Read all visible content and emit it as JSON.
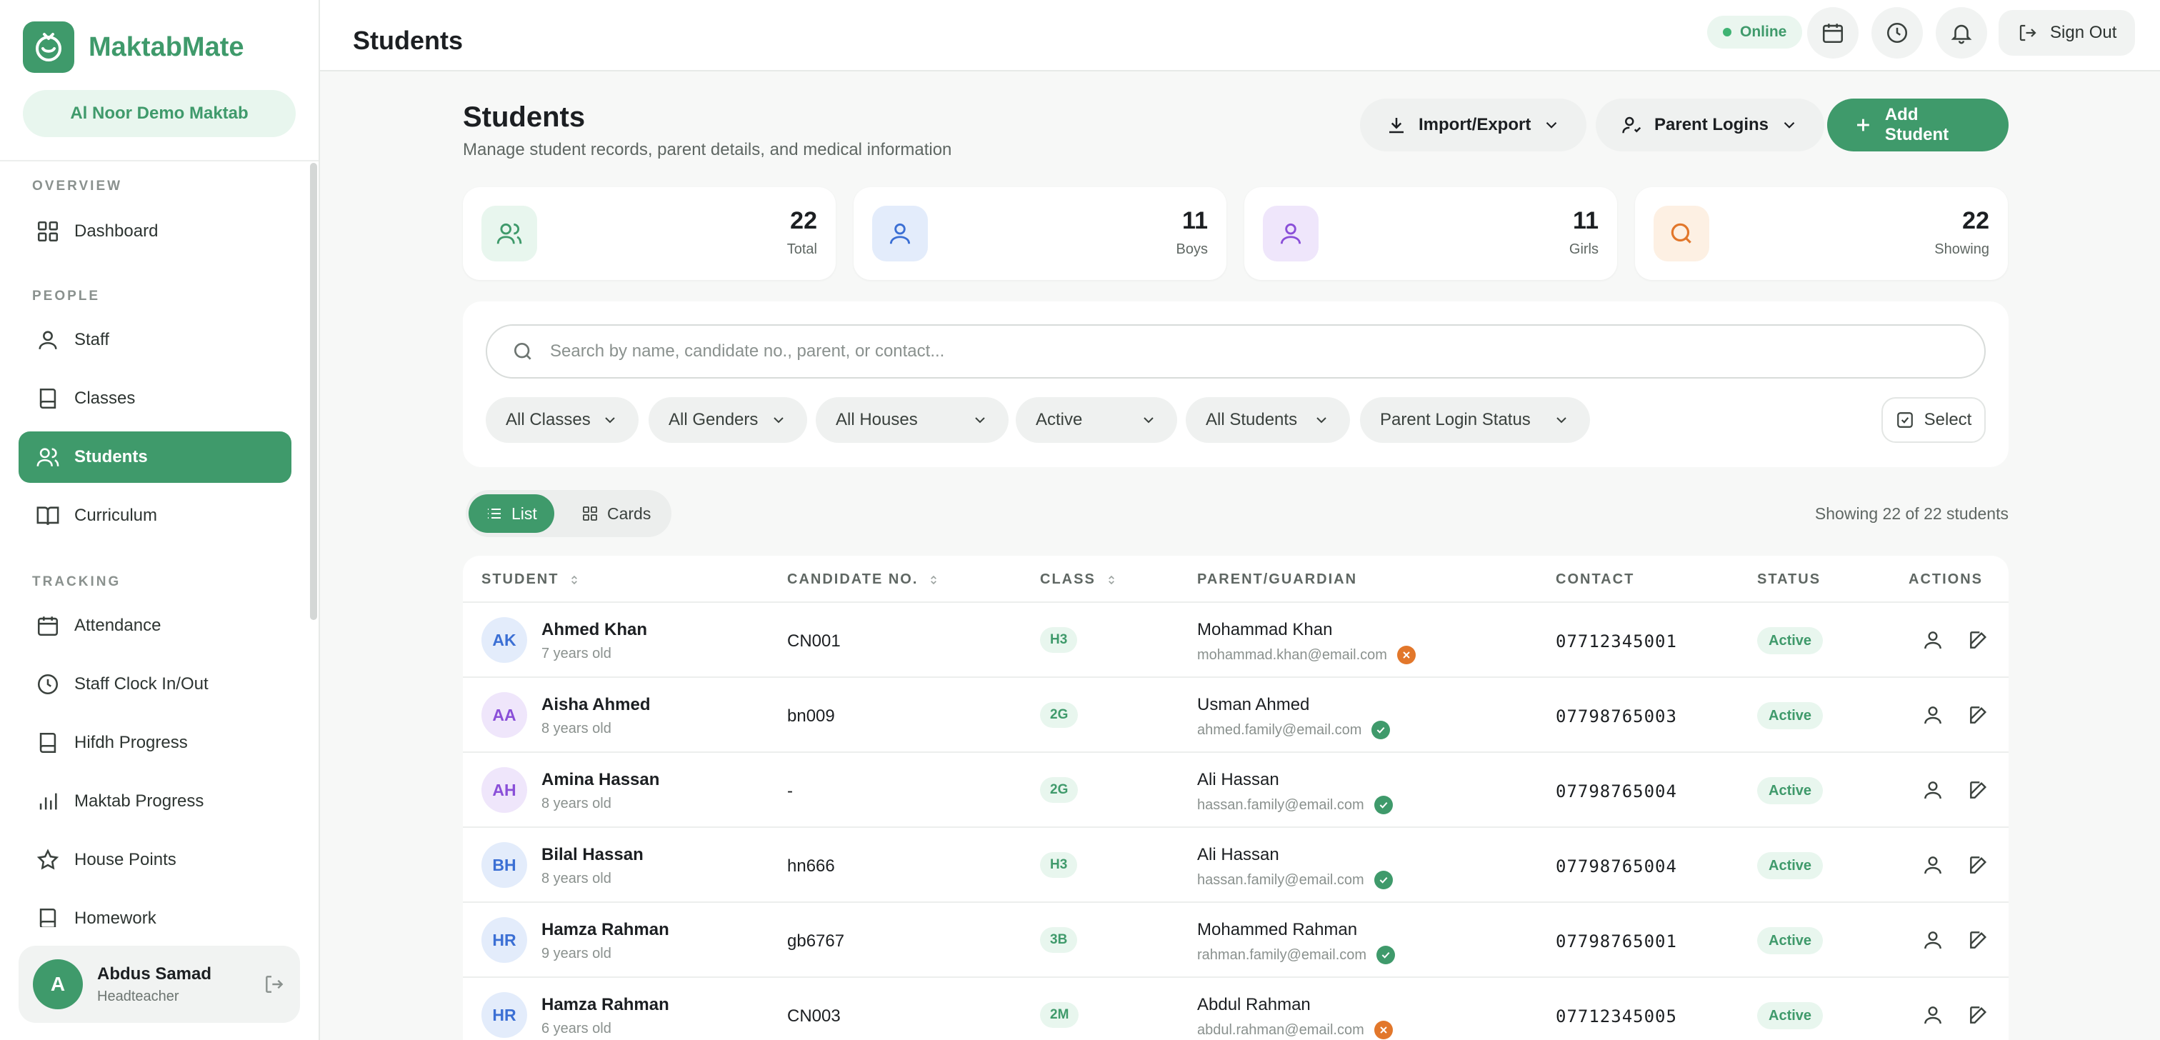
{
  "brand": {
    "name": "MaktabMate",
    "school": "Al Noor Demo Maktab"
  },
  "sidebar": {
    "sections": [
      {
        "label": "OVERVIEW",
        "items": [
          {
            "label": "Dashboard",
            "icon": "grid-icon"
          }
        ]
      },
      {
        "label": "PEOPLE",
        "items": [
          {
            "label": "Staff",
            "icon": "user-icon"
          },
          {
            "label": "Classes",
            "icon": "book-icon"
          },
          {
            "label": "Students",
            "icon": "users-icon",
            "active": true
          },
          {
            "label": "Curriculum",
            "icon": "open-book-icon"
          }
        ]
      },
      {
        "label": "TRACKING",
        "items": [
          {
            "label": "Attendance",
            "icon": "calendar-icon"
          },
          {
            "label": "Staff Clock In/Out",
            "icon": "clock-icon"
          },
          {
            "label": "Hifdh Progress",
            "icon": "book-icon"
          },
          {
            "label": "Maktab Progress",
            "icon": "bar-chart-icon"
          },
          {
            "label": "House Points",
            "icon": "star-icon"
          },
          {
            "label": "Homework",
            "icon": "book-icon"
          }
        ]
      }
    ],
    "user": {
      "initial": "A",
      "name": "Abdus Samad",
      "role": "Headteacher"
    }
  },
  "topbar": {
    "title": "Students",
    "status": "Online",
    "signout": "Sign Out"
  },
  "header": {
    "title": "Students",
    "subtitle": "Manage student records, parent details, and medical information",
    "import_export": "Import/Export",
    "parent_logins": "Parent Logins",
    "add_student": "Add Student"
  },
  "stats": [
    {
      "value": "22",
      "label": "Total",
      "color": "#3f9a6b",
      "bg": "#e8f6ee",
      "icon": "users-icon"
    },
    {
      "value": "11",
      "label": "Boys",
      "color": "#3b6fd4",
      "bg": "#e3ecfb",
      "icon": "user-icon"
    },
    {
      "value": "11",
      "label": "Girls",
      "color": "#8a4fd8",
      "bg": "#efe6fb",
      "icon": "user-icon"
    },
    {
      "value": "22",
      "label": "Showing",
      "color": "#e2772b",
      "bg": "#fdf0e3",
      "icon": "search-icon"
    }
  ],
  "filters": {
    "search_placeholder": "Search by name, candidate no., parent, or contact...",
    "classes": "All Classes",
    "genders": "All Genders",
    "houses": "All Houses",
    "status": "Active",
    "students": "All Students",
    "parent_login": "Parent Login Status",
    "select": "Select"
  },
  "view": {
    "list": "List",
    "cards": "Cards",
    "showing": "Showing 22 of 22 students"
  },
  "table": {
    "headers": {
      "student": "STUDENT",
      "candidate": "CANDIDATE NO.",
      "class": "CLASS",
      "parent": "PARENT/GUARDIAN",
      "contact": "CONTACT",
      "status": "STATUS",
      "actions": "ACTIONS"
    },
    "rows": [
      {
        "initials": "AK",
        "name": "Ahmed Khan",
        "age": "7 years old",
        "candidate": "CN001",
        "class": "H3",
        "parent": "Mohammad Khan",
        "email": "mohammad.khan@email.com",
        "login": false,
        "contact": "07712345001",
        "status": "Active",
        "avatar_color": "#3b6fd4",
        "avatar_bg": "#e3ecfb"
      },
      {
        "initials": "AA",
        "name": "Aisha Ahmed",
        "age": "8 years old",
        "candidate": "bn009",
        "class": "2G",
        "parent": "Usman Ahmed",
        "email": "ahmed.family@email.com",
        "login": true,
        "contact": "07798765003",
        "status": "Active",
        "avatar_color": "#8a4fd8",
        "avatar_bg": "#efe6fb"
      },
      {
        "initials": "AH",
        "name": "Amina Hassan",
        "age": "8 years old",
        "candidate": "-",
        "class": "2G",
        "parent": "Ali Hassan",
        "email": "hassan.family@email.com",
        "login": true,
        "contact": "07798765004",
        "status": "Active",
        "avatar_color": "#8a4fd8",
        "avatar_bg": "#efe6fb"
      },
      {
        "initials": "BH",
        "name": "Bilal Hassan",
        "age": "8 years old",
        "candidate": "hn666",
        "class": "H3",
        "parent": "Ali Hassan",
        "email": "hassan.family@email.com",
        "login": true,
        "contact": "07798765004",
        "status": "Active",
        "avatar_color": "#3b6fd4",
        "avatar_bg": "#e3ecfb"
      },
      {
        "initials": "HR",
        "name": "Hamza Rahman",
        "age": "9 years old",
        "candidate": "gb6767",
        "class": "3B",
        "parent": "Mohammed Rahman",
        "email": "rahman.family@email.com",
        "login": true,
        "contact": "07798765001",
        "status": "Active",
        "avatar_color": "#3b6fd4",
        "avatar_bg": "#e3ecfb"
      },
      {
        "initials": "HR",
        "name": "Hamza Rahman",
        "age": "6 years old",
        "candidate": "CN003",
        "class": "2M",
        "parent": "Abdul Rahman",
        "email": "abdul.rahman@email.com",
        "login": false,
        "contact": "07712345005",
        "status": "Active",
        "avatar_color": "#3b6fd4",
        "avatar_bg": "#e3ecfb"
      }
    ]
  }
}
